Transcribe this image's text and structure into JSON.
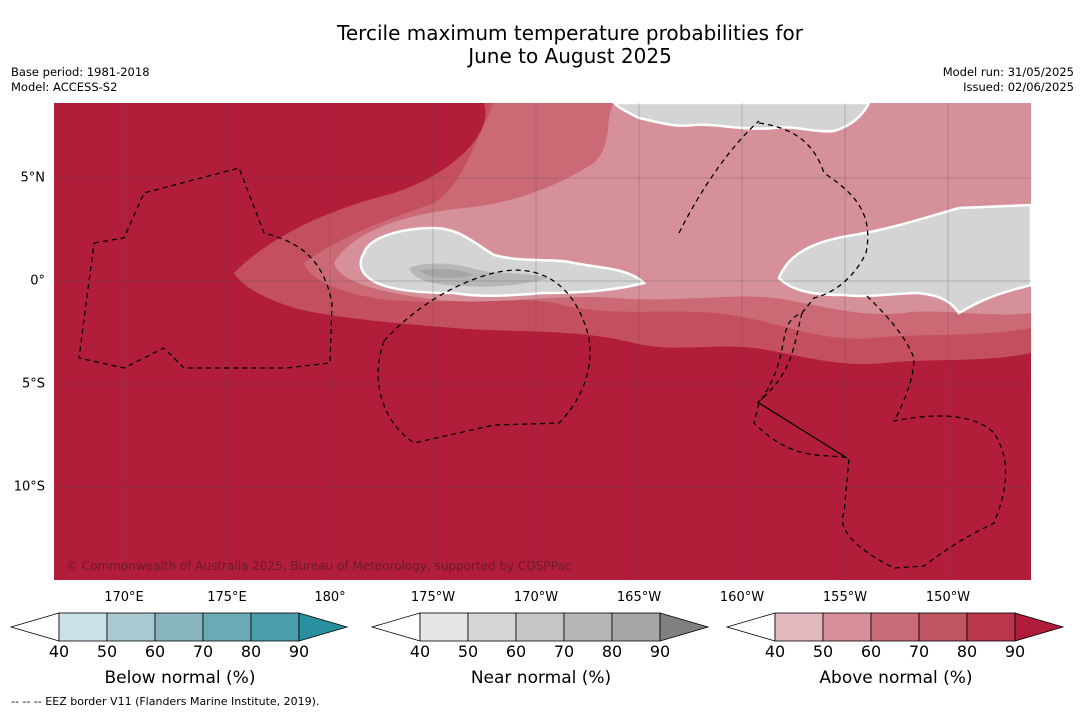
{
  "title_line1": "Tercile maximum temperature probabilities for",
  "title_line2": "June to August 2025",
  "base_period": "Base period: 1981-2018",
  "model": "Model: ACCESS-S2",
  "model_run": "Model run: 31/05/2025",
  "issued": "Issued: 02/06/2025",
  "copyright": "© Commonwealth of Australia 2025, Bureau of Meteorology, supported by COSPPac",
  "footnote": "-- -- -- EEZ border V11 (Flanders Marine Institute, 2019).",
  "lon_labels": [
    "170°E",
    "175°E",
    "180°",
    "175°W",
    "170°W",
    "165°W",
    "160°W",
    "155°W",
    "150°W"
  ],
  "lat_labels": [
    "5°N",
    "0°",
    "5°S",
    "10°S"
  ],
  "colorbars": [
    {
      "title": "Below normal (%)",
      "ticks": [
        "40",
        "50",
        "60",
        "70",
        "80",
        "90"
      ],
      "colors": [
        "#ffffff",
        "#c9e1e7",
        "#a8c9cf",
        "#88b5bf",
        "#6aa9b6",
        "#4a9eae",
        "#2a8fa1"
      ]
    },
    {
      "title": "Near normal (%)",
      "ticks": [
        "40",
        "50",
        "60",
        "70",
        "80",
        "90"
      ],
      "colors": [
        "#ffffff",
        "#e6e6e6",
        "#d6d6d6",
        "#c6c6c6",
        "#b6b6b6",
        "#a6a6a6",
        "#808080"
      ]
    },
    {
      "title": "Above normal (%)",
      "ticks": [
        "40",
        "50",
        "60",
        "70",
        "80",
        "90"
      ],
      "colors": [
        "#ffffff",
        "#e3b8bf",
        "#d88f99",
        "#c96c78",
        "#c15561",
        "#b93748",
        "#b01c3a"
      ]
    }
  ],
  "map_colors": {
    "ocean_dominant": "#b21e3a",
    "above_70": "#c4505f",
    "above_60": "#cb6a74",
    "above_50": "#d6909a",
    "near_normal_light": "#d4d4d4",
    "near_normal_mid": "#b7b7b7",
    "near_normal_dark": "#a6a6a6"
  }
}
